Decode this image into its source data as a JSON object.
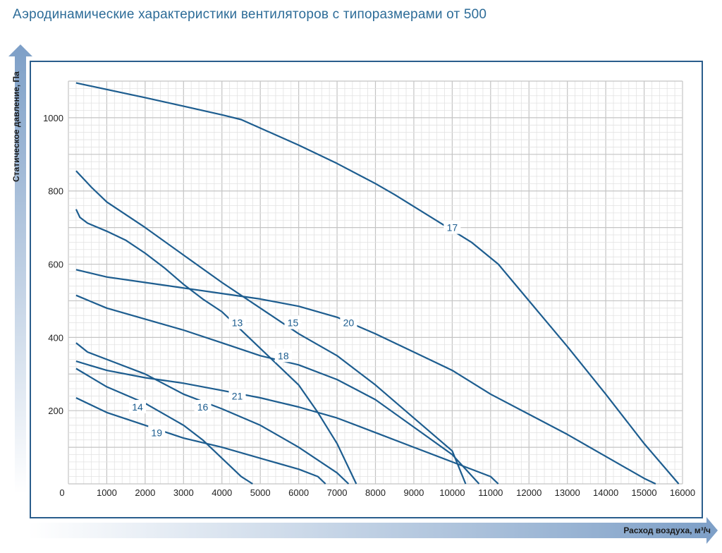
{
  "title": "Аэродинамические характеристики вентиляторов с типоразмерами от 500",
  "colors": {
    "title": "#2d6c98",
    "curve": "#1d5d8f",
    "frame": "#2a5d8c",
    "grid_major": "#c4c4c4",
    "grid_minor": "#e2e2e2",
    "arrow": "#7d9fc7"
  },
  "chart_data": {
    "type": "line",
    "xlabel": "Расход воздуха, м³/ч",
    "ylabel": "Статическое давление, Па",
    "xlim": [
      0,
      16000
    ],
    "ylim": [
      0,
      1100
    ],
    "xticks": [
      0,
      1000,
      2000,
      3000,
      4000,
      5000,
      6000,
      7000,
      8000,
      9000,
      10000,
      11000,
      12000,
      13000,
      14000,
      15000,
      16000
    ],
    "yticks": [
      200,
      400,
      600,
      800,
      1000
    ],
    "grid": true,
    "legend": "none",
    "series": [
      {
        "name": "17",
        "label_at": [
          10000,
          700
        ],
        "points": [
          [
            200,
            1095
          ],
          [
            2000,
            1055
          ],
          [
            4000,
            1008
          ],
          [
            4500,
            995
          ],
          [
            6000,
            925
          ],
          [
            7000,
            875
          ],
          [
            8000,
            820
          ],
          [
            8500,
            790
          ],
          [
            9500,
            725
          ],
          [
            10500,
            660
          ],
          [
            11200,
            600
          ],
          [
            12000,
            500
          ],
          [
            13000,
            375
          ],
          [
            14000,
            245
          ],
          [
            15000,
            110
          ],
          [
            15900,
            0
          ]
        ]
      },
      {
        "name": "13",
        "label_at": [
          4400,
          440
        ],
        "points": [
          [
            200,
            750
          ],
          [
            300,
            728
          ],
          [
            500,
            712
          ],
          [
            1000,
            690
          ],
          [
            1500,
            665
          ],
          [
            2000,
            630
          ],
          [
            2500,
            590
          ],
          [
            3000,
            545
          ],
          [
            3500,
            505
          ],
          [
            4000,
            470
          ],
          [
            5000,
            370
          ],
          [
            6000,
            270
          ],
          [
            6500,
            195
          ],
          [
            7000,
            110
          ],
          [
            7500,
            0
          ]
        ]
      },
      {
        "name": "15",
        "label_at": [
          5850,
          440
        ],
        "points": [
          [
            200,
            855
          ],
          [
            600,
            810
          ],
          [
            1000,
            770
          ],
          [
            2000,
            700
          ],
          [
            3000,
            625
          ],
          [
            4000,
            550
          ],
          [
            5000,
            480
          ],
          [
            6000,
            410
          ],
          [
            7000,
            350
          ],
          [
            8000,
            270
          ],
          [
            9000,
            180
          ],
          [
            10000,
            90
          ],
          [
            10350,
            0
          ]
        ]
      },
      {
        "name": "20",
        "label_at": [
          7300,
          440
        ],
        "points": [
          [
            200,
            585
          ],
          [
            1000,
            565
          ],
          [
            2000,
            550
          ],
          [
            3000,
            535
          ],
          [
            4000,
            520
          ],
          [
            5000,
            505
          ],
          [
            6000,
            485
          ],
          [
            7000,
            455
          ],
          [
            8000,
            410
          ],
          [
            9000,
            360
          ],
          [
            10000,
            310
          ],
          [
            11000,
            245
          ],
          [
            12000,
            190
          ],
          [
            13000,
            135
          ],
          [
            14000,
            75
          ],
          [
            15000,
            15
          ],
          [
            15300,
            0
          ]
        ]
      },
      {
        "name": "18",
        "label_at": [
          5600,
          350
        ],
        "points": [
          [
            200,
            515
          ],
          [
            1000,
            480
          ],
          [
            2000,
            450
          ],
          [
            3000,
            420
          ],
          [
            4000,
            385
          ],
          [
            5000,
            350
          ],
          [
            6000,
            325
          ],
          [
            7000,
            285
          ],
          [
            8000,
            230
          ],
          [
            9000,
            155
          ],
          [
            10000,
            80
          ],
          [
            10700,
            0
          ]
        ]
      },
      {
        "name": "21",
        "label_at": [
          4400,
          240
        ],
        "points": [
          [
            200,
            335
          ],
          [
            1000,
            310
          ],
          [
            2000,
            290
          ],
          [
            3000,
            275
          ],
          [
            4000,
            255
          ],
          [
            5000,
            235
          ],
          [
            6000,
            210
          ],
          [
            7000,
            180
          ],
          [
            8000,
            140
          ],
          [
            9000,
            100
          ],
          [
            10000,
            60
          ],
          [
            11000,
            20
          ],
          [
            11200,
            0
          ]
        ]
      },
      {
        "name": "16",
        "label_at": [
          3500,
          210
        ],
        "points": [
          [
            200,
            385
          ],
          [
            500,
            360
          ],
          [
            1000,
            340
          ],
          [
            2000,
            300
          ],
          [
            3000,
            245
          ],
          [
            4000,
            205
          ],
          [
            5000,
            160
          ],
          [
            6000,
            100
          ],
          [
            7000,
            30
          ],
          [
            7300,
            0
          ]
        ]
      },
      {
        "name": "14",
        "label_at": [
          1800,
          210
        ],
        "points": [
          [
            200,
            315
          ],
          [
            1000,
            265
          ],
          [
            2000,
            220
          ],
          [
            3000,
            160
          ],
          [
            3500,
            120
          ],
          [
            4000,
            70
          ],
          [
            4500,
            20
          ],
          [
            4800,
            0
          ]
        ]
      },
      {
        "name": "19",
        "label_at": [
          2300,
          140
        ],
        "points": [
          [
            200,
            235
          ],
          [
            1000,
            195
          ],
          [
            2000,
            160
          ],
          [
            3000,
            125
          ],
          [
            4000,
            100
          ],
          [
            5000,
            70
          ],
          [
            6000,
            40
          ],
          [
            6500,
            20
          ],
          [
            6700,
            0
          ]
        ]
      }
    ]
  }
}
